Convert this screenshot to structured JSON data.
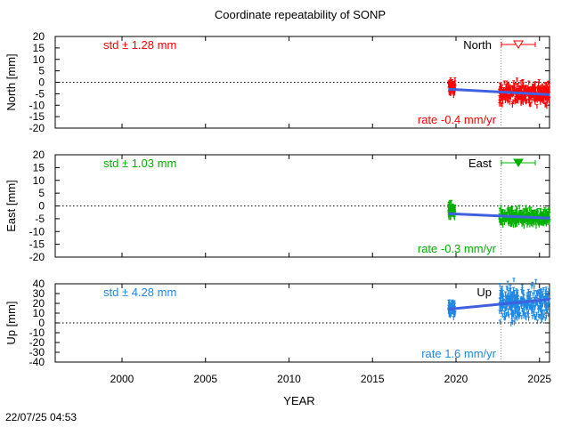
{
  "title": "Coordinate repeatability of SONP",
  "timestamp": "22/07/25 04:53",
  "colors": {
    "north": "#ff0000",
    "east": "#00b000",
    "up": "#1e88e5",
    "trend": "#4060e0",
    "axis": "#000000",
    "grid": "#888888"
  },
  "chart_data": [
    {
      "type": "scatter",
      "panel": "north",
      "ylabel": "North [mm]",
      "ylim": [
        -20,
        20
      ],
      "yticks": [
        -20,
        -15,
        -10,
        -5,
        0,
        5,
        10,
        15,
        20
      ],
      "xlim": [
        1996,
        2025.6
      ],
      "std_label": "std ± 1.28 mm",
      "rate_label": "rate -0.4 mm/yr",
      "legend": "North",
      "marker": "open-triangle-down",
      "series": [
        {
          "name": "cluster-2019",
          "x_range": [
            2019.55,
            2019.95
          ],
          "center": -2.5,
          "spread": 3.5
        },
        {
          "name": "cluster-2022",
          "x_range": [
            2022.6,
            2025.6
          ],
          "center": -5.0,
          "spread": 5.0
        }
      ],
      "trend": {
        "x": [
          2019.55,
          2025.6
        ],
        "y": [
          -3.0,
          -5.4
        ]
      },
      "ref_line_year": 2022.7
    },
    {
      "type": "scatter",
      "panel": "east",
      "ylabel": "East [mm]",
      "ylim": [
        -20,
        20
      ],
      "yticks": [
        -20,
        -15,
        -10,
        -5,
        0,
        5,
        10,
        15,
        20
      ],
      "xlim": [
        1996,
        2025.6
      ],
      "std_label": "std ± 1.03 mm",
      "rate_label": "rate -0.3 mm/yr",
      "legend": "East",
      "marker": "filled-triangle-down",
      "series": [
        {
          "name": "cluster-2019",
          "x_range": [
            2019.55,
            2019.95
          ],
          "center": -2.5,
          "spread": 3.5
        },
        {
          "name": "cluster-2022",
          "x_range": [
            2022.6,
            2025.6
          ],
          "center": -4.5,
          "spread": 3.5
        }
      ],
      "trend": {
        "x": [
          2019.55,
          2025.6
        ],
        "y": [
          -3.0,
          -4.8
        ]
      },
      "ref_line_year": 2022.7
    },
    {
      "type": "scatter",
      "panel": "up",
      "ylabel": "Up [mm]",
      "ylim": [
        -40,
        40
      ],
      "yticks": [
        -40,
        -30,
        -20,
        -10,
        0,
        10,
        20,
        30,
        40
      ],
      "xlim": [
        1996,
        2025.6
      ],
      "std_label": "std ± 4.28 mm",
      "rate_label": "rate  1.6 mm/yr",
      "legend": "Up",
      "marker": "none",
      "series": [
        {
          "name": "cluster-2019",
          "x_range": [
            2019.55,
            2019.95
          ],
          "center": 14,
          "spread": 10
        },
        {
          "name": "cluster-2022",
          "x_range": [
            2022.6,
            2025.6
          ],
          "center": 20,
          "spread": 18
        }
      ],
      "trend": {
        "x": [
          2019.55,
          2025.6
        ],
        "y": [
          14,
          24
        ]
      },
      "ref_line_year": 2022.7
    }
  ],
  "xaxis": {
    "label": "YEAR",
    "ticks": [
      2000,
      2005,
      2010,
      2015,
      2020,
      2025
    ]
  }
}
